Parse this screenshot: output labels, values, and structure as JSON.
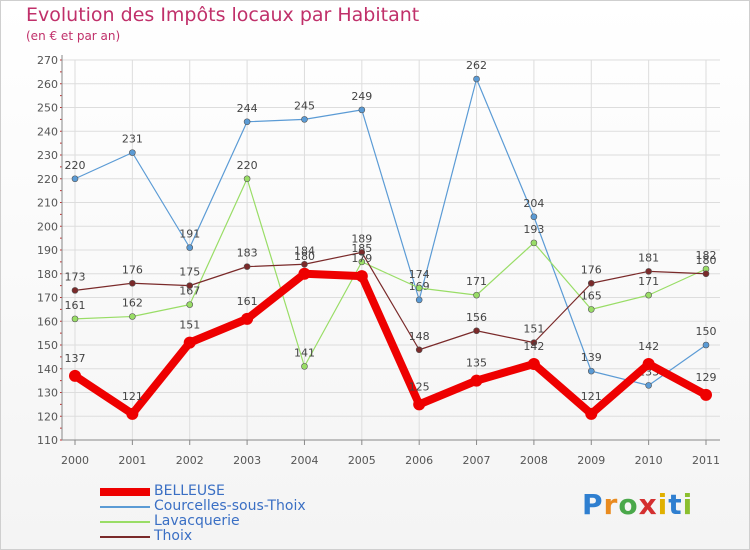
{
  "title": "Evolution des Impôts locaux par Habitant",
  "subtitle": "(en € et par an)",
  "logo": "Proxiti",
  "colors": {
    "title": "#c0306a",
    "axis_text": "#555555",
    "legend_text": "#3a6fc4"
  },
  "chart_data": {
    "type": "line",
    "title": "Evolution des Impôts locaux par Habitant",
    "ylabel": "(en € et par an)",
    "xlabel": "",
    "ylim": [
      110,
      270
    ],
    "yticks": [
      110,
      120,
      130,
      140,
      150,
      160,
      170,
      180,
      190,
      200,
      210,
      220,
      230,
      240,
      250,
      260,
      270
    ],
    "categories": [
      "2000",
      "2001",
      "2002",
      "2003",
      "2004",
      "2005",
      "2006",
      "2007",
      "2008",
      "2009",
      "2010",
      "2011"
    ],
    "grid": true,
    "legend_position": "bottom-left",
    "series": [
      {
        "name": "BELLEUSE",
        "color": "#ee0000",
        "values": [
          137,
          121,
          151,
          161,
          180,
          179,
          125,
          135,
          142,
          121,
          142,
          129
        ],
        "labels": [
          "137",
          "121",
          "151",
          "161",
          "180",
          "179",
          "125",
          "135",
          "142",
          "121",
          "142",
          "129"
        ]
      },
      {
        "name": "Courcelles-sous-Thoix",
        "color": "#5b9bd5",
        "values": [
          220,
          231,
          191,
          244,
          245,
          249,
          169,
          262,
          204,
          139,
          133,
          150
        ],
        "labels": [
          "220",
          "231",
          "191",
          "244",
          "245",
          "249",
          "169",
          "262",
          "204",
          "139",
          "133",
          "150"
        ]
      },
      {
        "name": "Lavacquerie",
        "color": "#99dd66",
        "values": [
          161,
          162,
          167,
          220,
          141,
          185,
          174,
          171,
          193,
          165,
          171,
          182
        ],
        "labels": [
          "161",
          "162",
          "167",
          "220",
          "141",
          "185",
          "174",
          "171",
          "193",
          "165",
          "171",
          "182"
        ]
      },
      {
        "name": "Thoix",
        "color": "#7a2a2a",
        "values": [
          173,
          176,
          175,
          183,
          184,
          189,
          148,
          156,
          151,
          176,
          181,
          180
        ],
        "labels": [
          "173",
          "176",
          "175",
          "183",
          "184",
          "189",
          "148",
          "156",
          "151",
          "176",
          "181",
          "180"
        ]
      }
    ]
  }
}
